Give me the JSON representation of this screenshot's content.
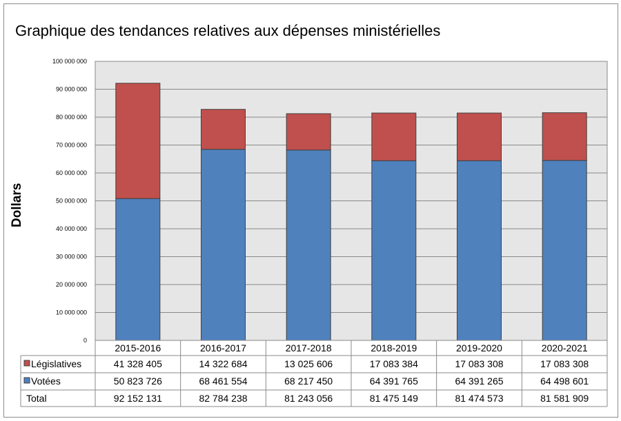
{
  "chart_data": {
    "type": "bar",
    "stacked": true,
    "title": "Graphique des tendances relatives aux dépenses ministérielles",
    "xlabel": "",
    "ylabel": "Dollars",
    "ylim": [
      0,
      100000000
    ],
    "yticks": [
      "0",
      "10 000 000",
      "20 000 000",
      "30 000 000",
      "40 000 000",
      "50 000 000",
      "60 000 000",
      "70 000 000",
      "80 000 000",
      "90 000 000",
      "100 000 000"
    ],
    "grid": true,
    "legend": "data-table",
    "categories": [
      "2015-2016",
      "2016-2017",
      "2017-2018",
      "2018-2019",
      "2019-2020",
      "2020-2021"
    ],
    "series": [
      {
        "name": "Votées",
        "color": "#4f81bd",
        "values": [
          50823726,
          68461554,
          68217450,
          64391765,
          64391265,
          64498601
        ],
        "labels": [
          "50 823 726",
          "68 461 554",
          "68 217 450",
          "64 391 765",
          "64 391 265",
          "64 498 601"
        ]
      },
      {
        "name": "Législatives",
        "color": "#c0504d",
        "values": [
          41328405,
          14322684,
          13025606,
          17083384,
          17083308,
          17083308
        ],
        "labels": [
          "41 328 405",
          "14 322 684",
          "13 025 606",
          "17 083 384",
          "17 083 308",
          "17 083 308"
        ]
      }
    ],
    "total": {
      "name": "Total",
      "labels": [
        "92 152 131",
        "82 784 238",
        "81 243 056",
        "81 475 149",
        "81 474 573",
        "81 581 909"
      ]
    },
    "plot_background": "#e6e6e6"
  }
}
